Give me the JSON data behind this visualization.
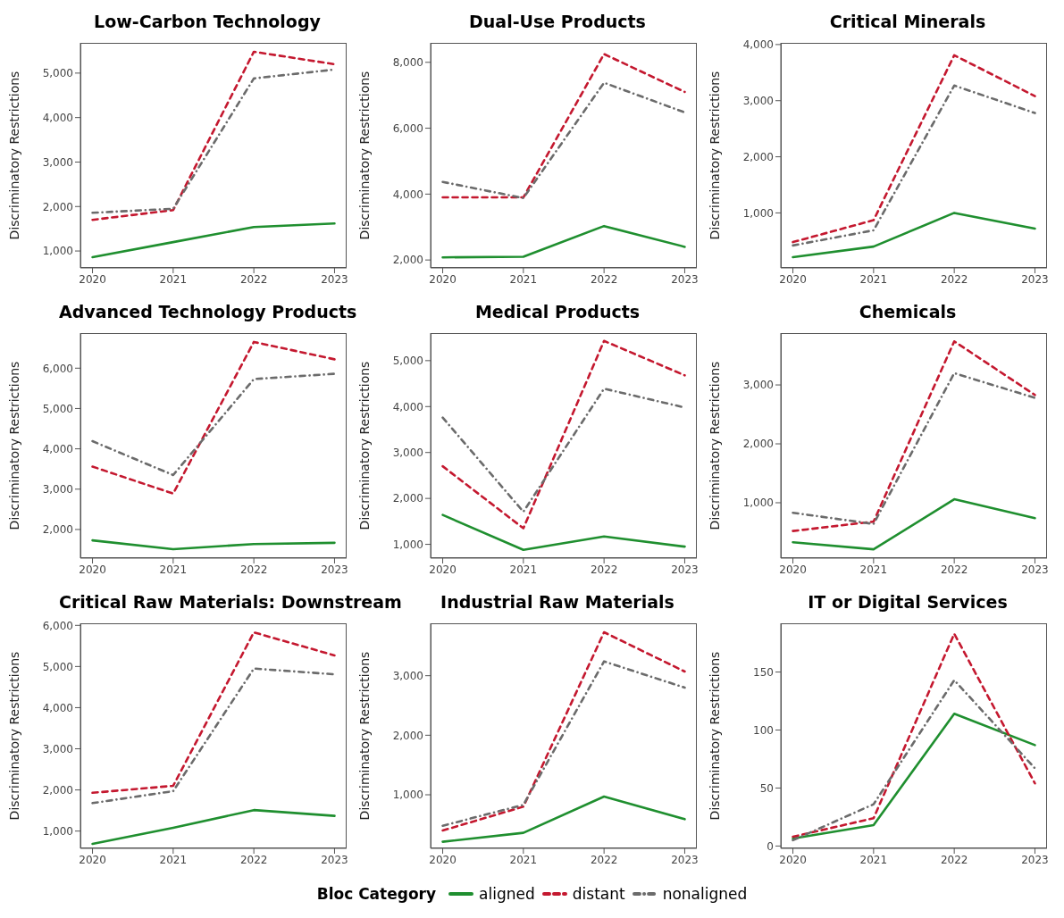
{
  "chart_data": [
    {
      "type": "line",
      "title": "Low-Carbon Technology",
      "ylabel": "Discriminatory Restrictions",
      "categories": [
        "2020",
        "2021",
        "2022",
        "2023"
      ],
      "ylim": [
        620,
        5680
      ],
      "yticks": [
        {
          "value": 1000,
          "label": "1,000"
        },
        {
          "value": 2000,
          "label": "2,000"
        },
        {
          "value": 3000,
          "label": "3,000"
        },
        {
          "value": 4000,
          "label": "4,000"
        },
        {
          "value": 5000,
          "label": "5,000"
        }
      ],
      "grid": false,
      "legend": "bottom",
      "legend_title": "Bloc Category",
      "series": [
        {
          "name": "aligned",
          "color": "#1f8f2f",
          "line_style": "solid",
          "values": [
            860,
            1200,
            1540,
            1620
          ]
        },
        {
          "name": "distant",
          "color": "#c4182f",
          "line_style": "dashed",
          "values": [
            1700,
            1920,
            5480,
            5200
          ]
        },
        {
          "name": "nonaligned",
          "color": "#6b6b6b",
          "line_style": "dotted",
          "values": [
            1860,
            1950,
            4880,
            5080
          ]
        }
      ]
    },
    {
      "type": "line",
      "title": "Dual-Use Products",
      "ylabel": "Discriminatory Restrictions",
      "categories": [
        "2020",
        "2021",
        "2022",
        "2023"
      ],
      "ylim": [
        1760,
        8590
      ],
      "yticks": [
        {
          "value": 2000,
          "label": "2,000"
        },
        {
          "value": 4000,
          "label": "4,000"
        },
        {
          "value": 6000,
          "label": "6,000"
        },
        {
          "value": 8000,
          "label": "8,000"
        }
      ],
      "grid": false,
      "series": [
        {
          "color": "#1f8f2f",
          "line_style": "solid",
          "values": [
            2080,
            2100,
            3030,
            2400
          ]
        },
        {
          "color": "#c4182f",
          "line_style": "dashed",
          "values": [
            3900,
            3900,
            8250,
            7100
          ]
        },
        {
          "color": "#6b6b6b",
          "line_style": "dotted",
          "values": [
            4370,
            3880,
            7380,
            6480
          ]
        }
      ]
    },
    {
      "type": "line",
      "title": "Critical Minerals",
      "ylabel": "Discriminatory Restrictions",
      "categories": [
        "2020",
        "2021",
        "2022",
        "2023"
      ],
      "ylim": [
        20,
        4030
      ],
      "yticks": [
        {
          "value": 1000,
          "label": "1,000"
        },
        {
          "value": 2000,
          "label": "2,000"
        },
        {
          "value": 3000,
          "label": "3,000"
        },
        {
          "value": 4000,
          "label": "4,000"
        }
      ],
      "grid": false,
      "series": [
        {
          "color": "#1f8f2f",
          "line_style": "solid",
          "values": [
            210,
            400,
            1000,
            720
          ]
        },
        {
          "color": "#c4182f",
          "line_style": "dashed",
          "values": [
            480,
            870,
            3810,
            3080
          ]
        },
        {
          "color": "#6b6b6b",
          "line_style": "dotted",
          "values": [
            420,
            690,
            3270,
            2780
          ]
        }
      ]
    },
    {
      "type": "line",
      "title": "Advanced Technology Products",
      "ylabel": "Discriminatory Restrictions",
      "categories": [
        "2020",
        "2021",
        "2022",
        "2023"
      ],
      "ylim": [
        1290,
        6870
      ],
      "yticks": [
        {
          "value": 2000,
          "label": "2,000"
        },
        {
          "value": 3000,
          "label": "3,000"
        },
        {
          "value": 4000,
          "label": "4,000"
        },
        {
          "value": 5000,
          "label": "5,000"
        },
        {
          "value": 6000,
          "label": "6,000"
        }
      ],
      "grid": false,
      "series": [
        {
          "color": "#1f8f2f",
          "line_style": "solid",
          "values": [
            1730,
            1510,
            1640,
            1670
          ]
        },
        {
          "color": "#c4182f",
          "line_style": "dashed",
          "values": [
            3560,
            2890,
            6650,
            6220
          ]
        },
        {
          "color": "#6b6b6b",
          "line_style": "dotted",
          "values": [
            4190,
            3350,
            5730,
            5860
          ]
        }
      ]
    },
    {
      "type": "line",
      "title": "Medical Products",
      "ylabel": "Discriminatory Restrictions",
      "categories": [
        "2020",
        "2021",
        "2022",
        "2023"
      ],
      "ylim": [
        700,
        5600
      ],
      "yticks": [
        {
          "value": 1000,
          "label": "1,000"
        },
        {
          "value": 2000,
          "label": "2,000"
        },
        {
          "value": 3000,
          "label": "3,000"
        },
        {
          "value": 4000,
          "label": "4,000"
        },
        {
          "value": 5000,
          "label": "5,000"
        }
      ],
      "grid": false,
      "series": [
        {
          "color": "#1f8f2f",
          "line_style": "solid",
          "values": [
            1640,
            880,
            1170,
            950
          ]
        },
        {
          "color": "#c4182f",
          "line_style": "dashed",
          "values": [
            2700,
            1350,
            5430,
            4680
          ]
        },
        {
          "color": "#6b6b6b",
          "line_style": "dotted",
          "values": [
            3760,
            1710,
            4390,
            3980
          ]
        }
      ]
    },
    {
      "type": "line",
      "title": "Chemicals",
      "ylabel": "Discriminatory Restrictions",
      "categories": [
        "2020",
        "2021",
        "2022",
        "2023"
      ],
      "ylim": [
        60,
        3880
      ],
      "yticks": [
        {
          "value": 1000,
          "label": "1,000"
        },
        {
          "value": 2000,
          "label": "2,000"
        },
        {
          "value": 3000,
          "label": "3,000"
        }
      ],
      "grid": false,
      "series": [
        {
          "color": "#1f8f2f",
          "line_style": "solid",
          "values": [
            330,
            210,
            1060,
            740
          ]
        },
        {
          "color": "#c4182f",
          "line_style": "dashed",
          "values": [
            520,
            680,
            3740,
            2830
          ]
        },
        {
          "color": "#6b6b6b",
          "line_style": "dotted",
          "values": [
            830,
            640,
            3200,
            2780
          ]
        }
      ]
    },
    {
      "type": "line",
      "title": "Critical Raw Materials: Downstream",
      "ylabel": "Discriminatory Restrictions",
      "categories": [
        "2020",
        "2021",
        "2022",
        "2023"
      ],
      "ylim": [
        580,
        6050
      ],
      "yticks": [
        {
          "value": 1000,
          "label": "1,000"
        },
        {
          "value": 2000,
          "label": "2,000"
        },
        {
          "value": 3000,
          "label": "3,000"
        },
        {
          "value": 4000,
          "label": "4,000"
        },
        {
          "value": 5000,
          "label": "5,000"
        },
        {
          "value": 6000,
          "label": "6,000"
        }
      ],
      "grid": false,
      "series": [
        {
          "color": "#1f8f2f",
          "line_style": "solid",
          "values": [
            690,
            1080,
            1510,
            1370
          ]
        },
        {
          "color": "#c4182f",
          "line_style": "dashed",
          "values": [
            1930,
            2100,
            5830,
            5270
          ]
        },
        {
          "color": "#6b6b6b",
          "line_style": "dotted",
          "values": [
            1680,
            1970,
            4950,
            4810
          ]
        }
      ]
    },
    {
      "type": "line",
      "title": "Industrial Raw Materials",
      "ylabel": "Discriminatory Restrictions",
      "categories": [
        "2020",
        "2021",
        "2022",
        "2023"
      ],
      "ylim": [
        100,
        3880
      ],
      "yticks": [
        {
          "value": 1000,
          "label": "1,000"
        },
        {
          "value": 2000,
          "label": "2,000"
        },
        {
          "value": 3000,
          "label": "3,000"
        }
      ],
      "grid": false,
      "series": [
        {
          "color": "#1f8f2f",
          "line_style": "solid",
          "values": [
            210,
            360,
            970,
            590
          ]
        },
        {
          "color": "#c4182f",
          "line_style": "dashed",
          "values": [
            400,
            800,
            3730,
            3070
          ]
        },
        {
          "color": "#6b6b6b",
          "line_style": "dotted",
          "values": [
            480,
            830,
            3240,
            2800
          ]
        }
      ]
    },
    {
      "type": "line",
      "title": "IT or Digital Services",
      "ylabel": "Discriminatory Restrictions",
      "categories": [
        "2020",
        "2021",
        "2022",
        "2023"
      ],
      "ylim": [
        -2,
        192
      ],
      "yticks": [
        0,
        50,
        100,
        150
      ],
      "grid": false,
      "series": [
        {
          "color": "#1f8f2f",
          "line_style": "solid",
          "values": [
            6.5,
            18,
            114,
            87
          ]
        },
        {
          "color": "#c4182f",
          "line_style": "dashed",
          "values": [
            8,
            24,
            183,
            54
          ]
        },
        {
          "color": "#6b6b6b",
          "line_style": "dotted",
          "values": [
            5,
            36,
            143,
            67
          ]
        }
      ]
    }
  ]
}
